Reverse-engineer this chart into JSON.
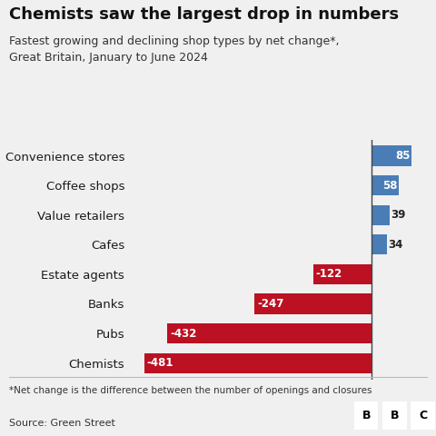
{
  "title": "Chemists saw the largest drop in numbers",
  "subtitle": "Fastest growing and declining shop types by net change*,\nGreat Britain, January to June 2024",
  "footnote": "*Net change is the difference between the number of openings and closures",
  "source": "Source: Green Street",
  "categories": [
    "Convenience stores",
    "Coffee shops",
    "Value retailers",
    "Cafes",
    "Estate agents",
    "Banks",
    "Pubs",
    "Chemists"
  ],
  "values": [
    85,
    58,
    39,
    34,
    -122,
    -247,
    -432,
    -481
  ],
  "positive_color": "#4a7db5",
  "negative_color": "#bb1122",
  "background_color": "#f0f0f0",
  "bar_height": 0.68,
  "xlim": [
    -510,
    110
  ],
  "label_outside_threshold": 50
}
